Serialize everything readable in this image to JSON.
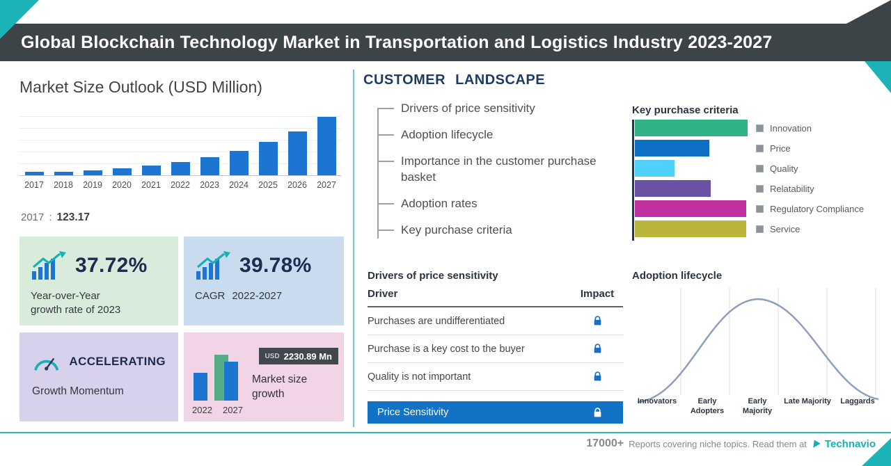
{
  "header": {
    "title": "Global Blockchain Technology Market in Transportation and Logistics Industry 2023-2027"
  },
  "market": {
    "title": "Market Size Outlook (USD Million)",
    "base_year": "2017",
    "separator": ":",
    "base_value": "123.17"
  },
  "cards": {
    "yoy": {
      "value": "37.72%",
      "label_line1": "Year-over-Year",
      "label_line2": "growth rate of 2023"
    },
    "cagr": {
      "value": "39.78%",
      "label": "CAGR",
      "period": "2022-2027"
    },
    "momentum": {
      "title": "ACCELERATING",
      "subtitle": "Growth Momentum"
    },
    "growth": {
      "currency": "USD",
      "amount": "2230.89 Mn",
      "label_line1": "Market size",
      "label_line2": "growth",
      "start_year": "2022",
      "end_year": "2027"
    }
  },
  "customer": {
    "section_title": "CUSTOMER LANDSCAPE",
    "items": [
      "Drivers of price sensitivity",
      "Adoption lifecycle",
      "Importance in the customer purchase basket",
      "Adoption rates",
      "Key purchase criteria"
    ],
    "kpc_title": "Key purchase criteria",
    "drivers_title": "Drivers of price sensitivity",
    "table": {
      "col_driver": "Driver",
      "col_impact": "Impact",
      "rows": [
        "Purchases are undifferentiated",
        "Purchase is a key cost to the buyer",
        "Quality is not important"
      ],
      "highlight": "Price Sensitivity",
      "impact_icon": "lock-icon"
    },
    "adoption_title": "Adoption lifecycle"
  },
  "footer": {
    "count": "17000+",
    "tagline": "Reports covering niche topics. Read them at",
    "brand": "Technavio"
  },
  "colors": {
    "accent_teal": "#1ab3b6",
    "header_bg": "#3d4448",
    "bar_blue": "#1c76d1",
    "highlight_blue": "#1273c6",
    "card_green": "#d9ecdc",
    "card_blue": "#c9dbef",
    "card_purple": "#d8d1eb",
    "card_pink": "#f1d4e5"
  },
  "chart_data": [
    {
      "id": "market-size-outlook",
      "type": "bar",
      "title": "Market Size Outlook (USD Million)",
      "ylabel": "USD Million",
      "categories": [
        "2017",
        "2018",
        "2019",
        "2020",
        "2021",
        "2022",
        "2023",
        "2024",
        "2025",
        "2026",
        "2027"
      ],
      "values_estimated": [
        123.17,
        175,
        240,
        330,
        450,
        620,
        850,
        1150,
        1560,
        2070,
        2745
      ],
      "labeled_point": {
        "year": "2017",
        "value": 123.17
      },
      "bar_color": "#1c76d1",
      "grid": true,
      "note": "Only 2017 value labeled on image; later values estimated from bar heights"
    },
    {
      "id": "key-purchase-criteria",
      "type": "bar",
      "orientation": "horizontal",
      "title": "Key purchase criteria",
      "categories": [
        "Innovation",
        "Price",
        "Quality",
        "Relatability",
        "Regulatory Compliance",
        "Service"
      ],
      "values_relative_pct": [
        100,
        66,
        35,
        67,
        99,
        99
      ],
      "colors": [
        "#2fb284",
        "#0d70c5",
        "#4ed2fc",
        "#6952a4",
        "#c231a0",
        "#b9b43a"
      ],
      "legend_position": "right",
      "note": "No numeric axis shown; values are relative bar lengths"
    },
    {
      "id": "market-size-growth",
      "type": "bar",
      "title": "Market size growth",
      "categories": [
        "2022",
        "2027"
      ],
      "values_relative_pct": [
        62,
        100
      ],
      "annotation": "USD 2230.89 Mn"
    },
    {
      "id": "adoption-lifecycle",
      "type": "area",
      "curve": "bell",
      "title": "Adoption lifecycle",
      "stages": [
        "Innovators",
        "Early Adopters",
        "Early Majority",
        "Late Majority",
        "Laggards"
      ],
      "grid": true
    }
  ]
}
